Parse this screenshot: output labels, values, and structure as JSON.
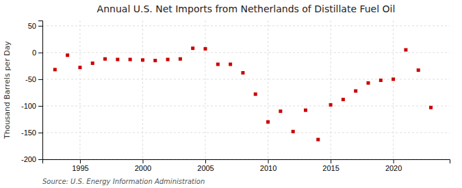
{
  "chart_data": {
    "type": "scatter",
    "title": "Annual U.S. Net Imports from Netherlands of Distillate Fuel Oil",
    "ylabel": "Thousand Barrels per Day",
    "source": "Source: U.S. Energy Information Administration",
    "x": [
      1993,
      1994,
      1995,
      1996,
      1997,
      1998,
      1999,
      2000,
      2001,
      2002,
      2003,
      2004,
      2005,
      2006,
      2007,
      2008,
      2009,
      2010,
      2011,
      2012,
      2013,
      2014,
      2015,
      2016,
      2017,
      2018,
      2019,
      2020,
      2021,
      2022,
      2023
    ],
    "values": [
      -32,
      -5,
      -28,
      -20,
      -12,
      -13,
      -13,
      -14,
      -15,
      -13,
      -12,
      8,
      7,
      -22,
      -22,
      -38,
      -78,
      -130,
      -110,
      -148,
      -108,
      -163,
      -98,
      -88,
      -72,
      -57,
      -52,
      -50,
      5,
      -33,
      -103
    ],
    "color": "#cc0000",
    "marker": "square",
    "xlim": [
      1992,
      2024.5
    ],
    "xticks": [
      1995,
      2000,
      2005,
      2010,
      2015,
      2020
    ],
    "ylim": [
      -200,
      60
    ],
    "yticks": [
      -200,
      -150,
      -100,
      -50,
      0,
      50
    ],
    "grid": true
  }
}
